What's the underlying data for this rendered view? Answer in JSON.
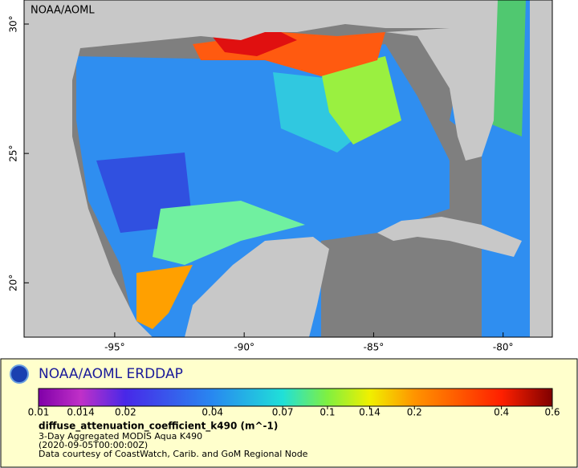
{
  "map": {
    "title": "NOAA/AOML",
    "xlim": [
      -98.5,
      -78.1
    ],
    "ylim": [
      17.9,
      30.93
    ],
    "xticks": [
      {
        "value": -95,
        "label": "-95°"
      },
      {
        "value": -90,
        "label": "-90°"
      },
      {
        "value": -85,
        "label": "-85°"
      },
      {
        "value": -80,
        "label": "-80°"
      }
    ],
    "yticks": [
      {
        "value": 20,
        "label": "20°"
      },
      {
        "value": 25,
        "label": "25°"
      },
      {
        "value": 30,
        "label": "30°"
      }
    ]
  },
  "legend": {
    "title": "NOAA/AOML ERDDAP",
    "colorbar": {
      "scale": "log",
      "lim": [
        0.01,
        0.6
      ],
      "ticks": [
        0.01,
        0.014,
        0.02,
        0.04,
        0.07,
        0.1,
        0.14,
        0.2,
        0.4,
        0.6
      ],
      "colors": [
        "#8000a8",
        "#c030c8",
        "#4828e8",
        "#2888f0",
        "#20e0d8",
        "#80f040",
        "#f0f000",
        "#ff9400",
        "#ff2000",
        "#800000"
      ]
    },
    "variable": "diffuse_attenuation_coefficient_k490 (m^-1)",
    "lines": [
      "3-Day Aggregated MODIS Aqua K490",
      "(2020-09-05T00:00:00Z)",
      "Data courtesy of CoastWatch, Carib. and GoM Regional Node"
    ]
  }
}
